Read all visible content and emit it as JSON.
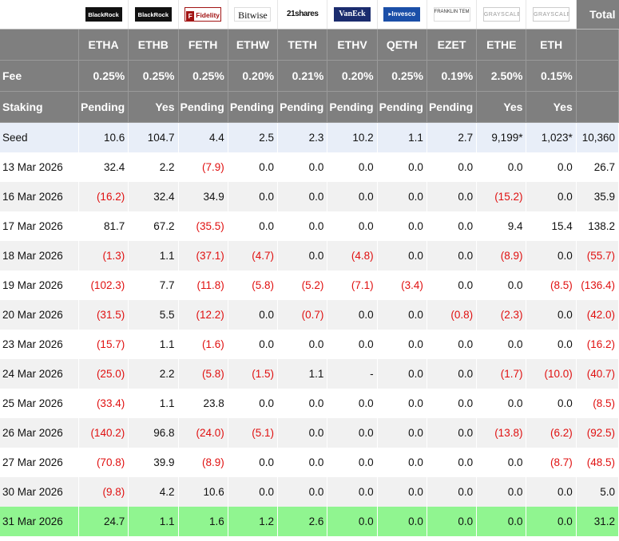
{
  "header": {
    "total_label": "Total",
    "ticker_label": "",
    "fee_label": "Fee",
    "staking_label": "Staking"
  },
  "funds": [
    {
      "issuer": "BlackRock",
      "ticker": "ETHA",
      "fee": "0.25%",
      "staking": "Pending",
      "logo": "blackrock-logo"
    },
    {
      "issuer": "BlackRock",
      "ticker": "ETHB",
      "fee": "0.25%",
      "staking": "Yes",
      "logo": "blackrock-logo"
    },
    {
      "issuer": "Fidelity",
      "ticker": "FETH",
      "fee": "0.25%",
      "staking": "Pending",
      "logo": "fidelity-logo"
    },
    {
      "issuer": "Bitwise",
      "ticker": "ETHW",
      "fee": "0.20%",
      "staking": "Pending",
      "logo": "bitwise-logo"
    },
    {
      "issuer": "21shares",
      "ticker": "TETH",
      "fee": "0.21%",
      "staking": "Pending",
      "logo": "21shares-logo"
    },
    {
      "issuer": "VanEck",
      "ticker": "ETHV",
      "fee": "0.20%",
      "staking": "Pending",
      "logo": "vaneck-logo"
    },
    {
      "issuer": "Invesco",
      "ticker": "QETH",
      "fee": "0.25%",
      "staking": "Pending",
      "logo": "invesco-logo"
    },
    {
      "issuer": "FRANKLIN TEMPLETON",
      "ticker": "EZET",
      "fee": "0.19%",
      "staking": "Pending",
      "logo": "franklin-templeton-logo"
    },
    {
      "issuer": "GRAYSCALE",
      "ticker": "ETHE",
      "fee": "2.50%",
      "staking": "Yes",
      "logo": "grayscale-logo"
    },
    {
      "issuer": "GRAYSCALE",
      "ticker": "ETH",
      "fee": "0.15%",
      "staking": "Yes",
      "logo": "grayscale-logo"
    }
  ],
  "rows": [
    {
      "label": "Seed",
      "values": [
        "10.6",
        "104.7",
        "4.4",
        "2.5",
        "2.3",
        "10.2",
        "1.1",
        "2.7",
        "9,199*",
        "1,023*",
        "10,360"
      ],
      "style": "seed"
    },
    {
      "label": "13 Mar 2026",
      "values": [
        "32.4",
        "2.2",
        "(7.9)",
        "0.0",
        "0.0",
        "0.0",
        "0.0",
        "0.0",
        "0.0",
        "0.0",
        "26.7"
      ]
    },
    {
      "label": "16 Mar 2026",
      "values": [
        "(16.2)",
        "32.4",
        "34.9",
        "0.0",
        "0.0",
        "0.0",
        "0.0",
        "0.0",
        "(15.2)",
        "0.0",
        "35.9"
      ]
    },
    {
      "label": "17 Mar 2026",
      "values": [
        "81.7",
        "67.2",
        "(35.5)",
        "0.0",
        "0.0",
        "0.0",
        "0.0",
        "0.0",
        "9.4",
        "15.4",
        "138.2"
      ]
    },
    {
      "label": "18 Mar 2026",
      "values": [
        "(1.3)",
        "1.1",
        "(37.1)",
        "(4.7)",
        "0.0",
        "(4.8)",
        "0.0",
        "0.0",
        "(8.9)",
        "0.0",
        "(55.7)"
      ]
    },
    {
      "label": "19 Mar 2026",
      "values": [
        "(102.3)",
        "7.7",
        "(11.8)",
        "(5.8)",
        "(5.2)",
        "(7.1)",
        "(3.4)",
        "0.0",
        "0.0",
        "(8.5)",
        "(136.4)"
      ]
    },
    {
      "label": "20 Mar 2026",
      "values": [
        "(31.5)",
        "5.5",
        "(12.2)",
        "0.0",
        "(0.7)",
        "0.0",
        "0.0",
        "(0.8)",
        "(2.3)",
        "0.0",
        "(42.0)"
      ]
    },
    {
      "label": "23 Mar 2026",
      "values": [
        "(15.7)",
        "1.1",
        "(1.6)",
        "0.0",
        "0.0",
        "0.0",
        "0.0",
        "0.0",
        "0.0",
        "0.0",
        "(16.2)"
      ]
    },
    {
      "label": "24 Mar 2026",
      "values": [
        "(25.0)",
        "2.2",
        "(5.8)",
        "(1.5)",
        "1.1",
        "-",
        "0.0",
        "0.0",
        "(1.7)",
        "(10.0)",
        "(40.7)"
      ]
    },
    {
      "label": "25 Mar 2026",
      "values": [
        "(33.4)",
        "1.1",
        "23.8",
        "0.0",
        "0.0",
        "0.0",
        "0.0",
        "0.0",
        "0.0",
        "0.0",
        "(8.5)"
      ]
    },
    {
      "label": "26 Mar 2026",
      "values": [
        "(140.2)",
        "96.8",
        "(24.0)",
        "(5.1)",
        "0.0",
        "0.0",
        "0.0",
        "0.0",
        "(13.8)",
        "(6.2)",
        "(92.5)"
      ]
    },
    {
      "label": "27 Mar 2026",
      "values": [
        "(70.8)",
        "39.9",
        "(8.9)",
        "0.0",
        "0.0",
        "0.0",
        "0.0",
        "0.0",
        "0.0",
        "(8.7)",
        "(48.5)"
      ]
    },
    {
      "label": "30 Mar 2026",
      "values": [
        "(9.8)",
        "4.2",
        "10.6",
        "0.0",
        "0.0",
        "0.0",
        "0.0",
        "0.0",
        "0.0",
        "0.0",
        "5.0"
      ]
    },
    {
      "label": "31 Mar 2026",
      "values": [
        "24.7",
        "1.1",
        "1.6",
        "1.2",
        "2.6",
        "0.0",
        "0.0",
        "0.0",
        "0.0",
        "0.0",
        "31.2"
      ],
      "style": "highlight"
    }
  ],
  "colors": {
    "header_bg": "#7f7f7f",
    "seed_bg": "#e8eef8",
    "alt_row_bg": "#f1f1f1",
    "highlight_bg": "#90f590",
    "negative_text": "#e01010"
  }
}
